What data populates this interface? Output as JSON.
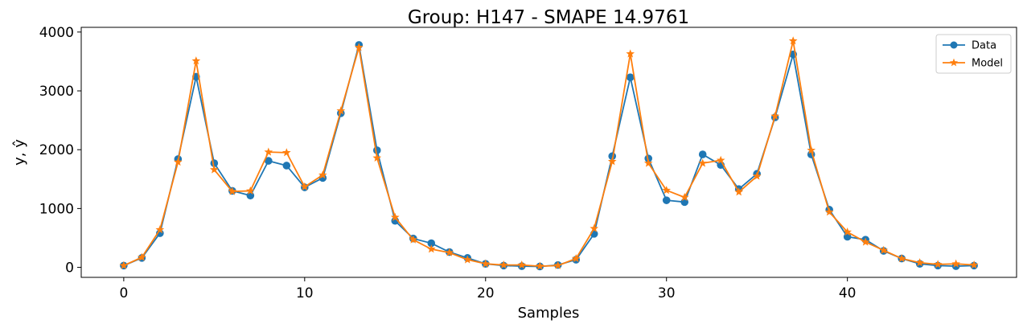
{
  "chart_data": {
    "type": "line",
    "title": "Group: H147 - SMAPE 14.9761",
    "xlabel": "Samples",
    "ylabel": "y, ŷ",
    "xlim": [
      -2.35,
      49.35
    ],
    "ylim": [
      -170,
      4080
    ],
    "xticks": [
      0,
      10,
      20,
      30,
      40
    ],
    "yticks": [
      0,
      1000,
      2000,
      3000,
      4000
    ],
    "grid": false,
    "legend_position": "top-right",
    "x": [
      0,
      1,
      2,
      3,
      4,
      5,
      6,
      7,
      8,
      9,
      10,
      11,
      12,
      13,
      14,
      15,
      16,
      17,
      18,
      19,
      20,
      21,
      22,
      23,
      24,
      25,
      26,
      27,
      28,
      29,
      30,
      31,
      32,
      33,
      34,
      35,
      36,
      37,
      38,
      39,
      40,
      41,
      42,
      43,
      44,
      45,
      46,
      47
    ],
    "series": [
      {
        "name": "Data",
        "color": "#1f77b4",
        "marker": "circle",
        "values": [
          30,
          160,
          580,
          1840,
          3240,
          1770,
          1300,
          1220,
          1810,
          1730,
          1360,
          1520,
          2620,
          3780,
          1990,
          790,
          490,
          410,
          260,
          160,
          60,
          30,
          20,
          15,
          40,
          130,
          570,
          1890,
          3230,
          1850,
          1140,
          1110,
          1920,
          1740,
          1330,
          1590,
          2550,
          3620,
          1920,
          980,
          520,
          470,
          280,
          150,
          60,
          30,
          20,
          30
        ]
      },
      {
        "name": "Model",
        "color": "#ff7f0e",
        "marker": "star",
        "values": [
          30,
          170,
          640,
          1790,
          3510,
          1660,
          1290,
          1300,
          1960,
          1950,
          1370,
          1570,
          2660,
          3740,
          1860,
          850,
          470,
          310,
          250,
          130,
          60,
          40,
          40,
          20,
          30,
          150,
          660,
          1800,
          3630,
          1770,
          1310,
          1190,
          1770,
          1820,
          1280,
          1550,
          2570,
          3850,
          1990,
          940,
          600,
          430,
          290,
          150,
          80,
          50,
          60,
          40
        ]
      }
    ]
  }
}
